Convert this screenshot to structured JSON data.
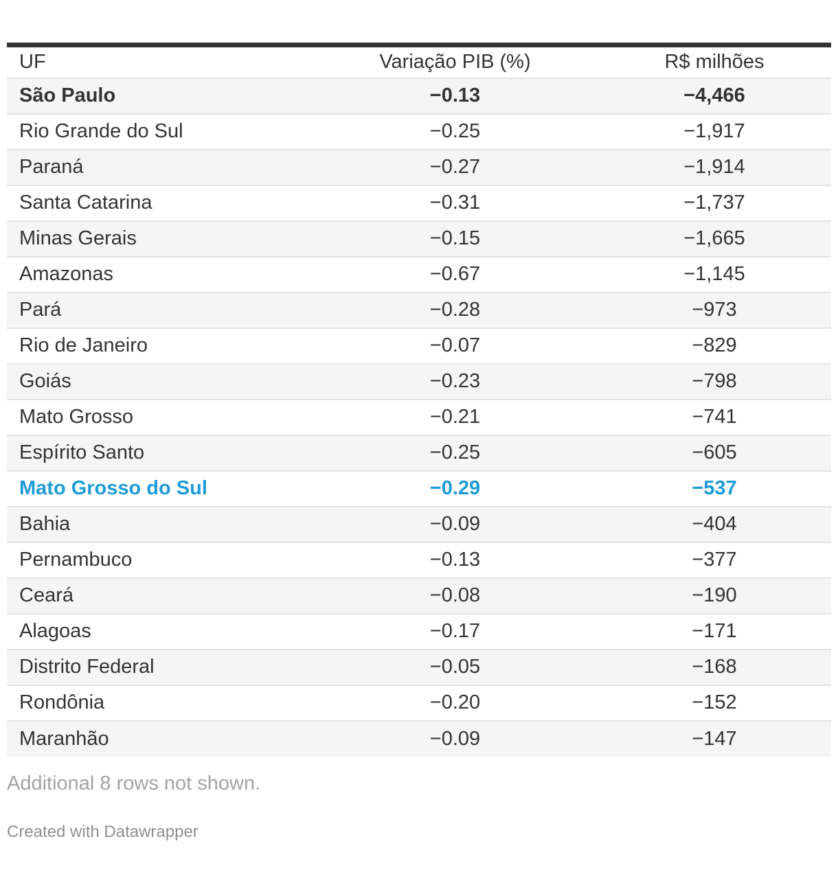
{
  "table": {
    "columns": [
      {
        "label": "UF"
      },
      {
        "label": "Variação PIB (%)"
      },
      {
        "label": "R$ milhões"
      }
    ],
    "rows": [
      {
        "uf": "São Paulo",
        "pib": "−0.13",
        "milhoes": "−4,466",
        "style": "bold"
      },
      {
        "uf": "Rio Grande do Sul",
        "pib": "−0.25",
        "milhoes": "−1,917"
      },
      {
        "uf": "Paraná",
        "pib": "−0.27",
        "milhoes": "−1,914"
      },
      {
        "uf": "Santa Catarina",
        "pib": "−0.31",
        "milhoes": "−1,737"
      },
      {
        "uf": "Minas Gerais",
        "pib": "−0.15",
        "milhoes": "−1,665"
      },
      {
        "uf": "Amazonas",
        "pib": "−0.67",
        "milhoes": "−1,145"
      },
      {
        "uf": "Pará",
        "pib": "−0.28",
        "milhoes": "−973"
      },
      {
        "uf": "Rio de Janeiro",
        "pib": "−0.07",
        "milhoes": "−829"
      },
      {
        "uf": "Goiás",
        "pib": "−0.23",
        "milhoes": "−798"
      },
      {
        "uf": "Mato Grosso",
        "pib": "−0.21",
        "milhoes": "−741"
      },
      {
        "uf": "Espírito Santo",
        "pib": "−0.25",
        "milhoes": "−605"
      },
      {
        "uf": "Mato Grosso do Sul",
        "pib": "−0.29",
        "milhoes": "−537",
        "style": "highlight"
      },
      {
        "uf": "Bahia",
        "pib": "−0.09",
        "milhoes": "−404"
      },
      {
        "uf": "Pernambuco",
        "pib": "−0.13",
        "milhoes": "−377"
      },
      {
        "uf": "Ceará",
        "pib": "−0.08",
        "milhoes": "−190"
      },
      {
        "uf": "Alagoas",
        "pib": "−0.17",
        "milhoes": "−171"
      },
      {
        "uf": "Distrito Federal",
        "pib": "−0.05",
        "milhoes": "−168"
      },
      {
        "uf": "Rondônia",
        "pib": "−0.20",
        "milhoes": "−152"
      },
      {
        "uf": "Maranhão",
        "pib": "−0.09",
        "milhoes": "−147"
      }
    ],
    "note": "Additional 8 rows not shown.",
    "credit": "Created with Datawrapper"
  },
  "colors": {
    "text": "#333333",
    "top_border": "#333333",
    "alt_row_bg": "#f5f5f5",
    "divider": "#e3e3e3",
    "highlight_text": "#1d9bd6",
    "note_text": "#a3a3a3",
    "credit_text": "#8f8f8f"
  },
  "chart_data": {
    "type": "table",
    "title": "",
    "columns": [
      "UF",
      "Variação PIB (%)",
      "R$ milhões"
    ],
    "rows": [
      [
        "São Paulo",
        -0.13,
        -4466
      ],
      [
        "Rio Grande do Sul",
        -0.25,
        -1917
      ],
      [
        "Paraná",
        -0.27,
        -1914
      ],
      [
        "Santa Catarina",
        -0.31,
        -1737
      ],
      [
        "Minas Gerais",
        -0.15,
        -1665
      ],
      [
        "Amazonas",
        -0.67,
        -1145
      ],
      [
        "Pará",
        -0.28,
        -973
      ],
      [
        "Rio de Janeiro",
        -0.07,
        -829
      ],
      [
        "Goiás",
        -0.23,
        -798
      ],
      [
        "Mato Grosso",
        -0.21,
        -741
      ],
      [
        "Espírito Santo",
        -0.25,
        -605
      ],
      [
        "Mato Grosso do Sul",
        -0.29,
        -537
      ],
      [
        "Bahia",
        -0.09,
        -404
      ],
      [
        "Pernambuco",
        -0.13,
        -377
      ],
      [
        "Ceará",
        -0.08,
        -190
      ],
      [
        "Alagoas",
        -0.17,
        -171
      ],
      [
        "Distrito Federal",
        -0.05,
        -168
      ],
      [
        "Rondônia",
        -0.2,
        -152
      ],
      [
        "Maranhão",
        -0.09,
        -147
      ]
    ],
    "bold_rows": [
      "São Paulo"
    ],
    "highlighted_rows": [
      "Mato Grosso do Sul"
    ],
    "highlight_color": "#1d9bd6",
    "note": "Additional 8 rows not shown.",
    "credit": "Created with Datawrapper",
    "layout_hints": {
      "striped": true,
      "numeric_alignment": "center",
      "hidden_row_count": 8
    }
  }
}
